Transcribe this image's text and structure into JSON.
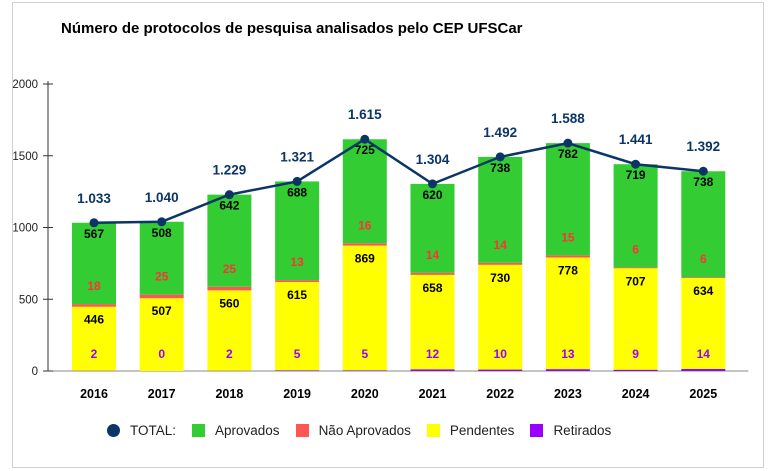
{
  "chart_data": {
    "type": "bar",
    "stacked": true,
    "title": "Número de protocolos de pesquisa analisados pelo CEP UFSCar",
    "categories": [
      "2016",
      "2017",
      "2018",
      "2019",
      "2020",
      "2021",
      "2022",
      "2023",
      "2024",
      "2025"
    ],
    "ylim": [
      0,
      2000
    ],
    "yticks": [
      0,
      500,
      1000,
      1500,
      2000
    ],
    "grid": false,
    "legend_position": "bottom",
    "series": [
      {
        "name": "Retirados",
        "color": "#9900ff",
        "label_color": "#9900ff",
        "values": [
          2,
          0,
          2,
          5,
          5,
          12,
          10,
          13,
          9,
          14
        ]
      },
      {
        "name": "Pendentes",
        "color": "#ffff00",
        "label_color": "#000000",
        "values": [
          446,
          507,
          560,
          615,
          869,
          658,
          730,
          778,
          707,
          634
        ]
      },
      {
        "name": "Não Aprovados",
        "color": "#ff5555",
        "label_color": "#ff3333",
        "values": [
          18,
          25,
          25,
          13,
          16,
          14,
          14,
          15,
          6,
          6
        ]
      },
      {
        "name": "Aprovados",
        "color": "#33cc33",
        "label_color": "#000000",
        "values": [
          567,
          508,
          642,
          688,
          725,
          620,
          738,
          782,
          719,
          738
        ]
      }
    ],
    "line": {
      "name": "TOTAL:",
      "color": "#0b3566",
      "type": "line",
      "values": [
        1033,
        1040,
        1229,
        1321,
        1615,
        1304,
        1492,
        1588,
        1441,
        1392
      ],
      "labels": [
        "1.033",
        "1.040",
        "1.229",
        "1.321",
        "1.615",
        "1.304",
        "1.492",
        "1.588",
        "1.441",
        "1.392"
      ]
    }
  }
}
